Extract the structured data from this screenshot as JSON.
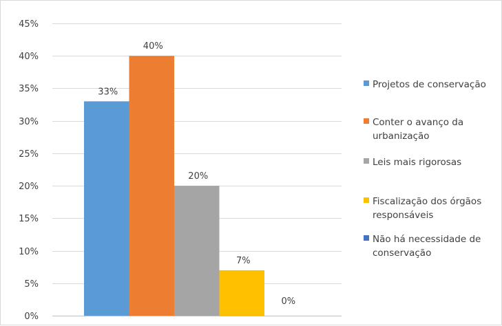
{
  "chart_data": {
    "type": "bar",
    "title": "",
    "xlabel": "",
    "ylabel": "",
    "ylim": [
      0,
      45
    ],
    "y_ticks": [
      "0%",
      "5%",
      "10%",
      "15%",
      "20%",
      "25%",
      "30%",
      "35%",
      "40%",
      "45%"
    ],
    "y_format": "percent",
    "grid": true,
    "legend_position": "right",
    "categories": [
      "Projetos de conservação",
      "Conter o avanço da urbanização",
      "Leis mais rigorosas",
      "Fiscalização dos órgãos responsáveis",
      "Não há necessidade de conservação"
    ],
    "values": [
      33,
      40,
      20,
      7,
      0
    ],
    "data_labels": [
      "33%",
      "40%",
      "20%",
      "7%",
      "0%"
    ],
    "colors": [
      "#5b9bd5",
      "#ed7d31",
      "#a5a5a5",
      "#ffc000",
      "#4472c4"
    ],
    "legend": [
      {
        "lines": [
          "Projetos de conservação"
        ]
      },
      {
        "lines": [
          "Conter o avanço da",
          "urbanização"
        ]
      },
      {
        "lines": [
          "Leis mais rigorosas"
        ]
      },
      {
        "lines": [
          "Fiscalização dos órgãos",
          "responsáveis"
        ]
      },
      {
        "lines": [
          "Não há necessidade de",
          "conservação"
        ]
      }
    ]
  }
}
